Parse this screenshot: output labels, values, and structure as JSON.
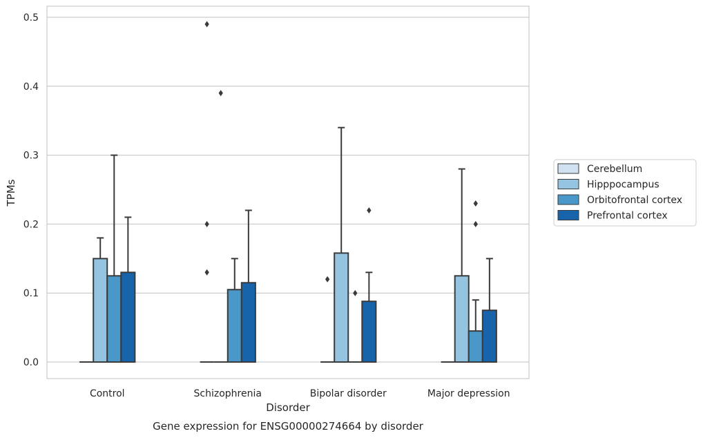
{
  "chart_data": {
    "type": "box",
    "title": "Gene expression for ENSG00000274664 by disorder",
    "xlabel": "Disorder",
    "ylabel": "TPMs",
    "ylim": [
      -0.024,
      0.516
    ],
    "yticks": [
      "0.0",
      "0.1",
      "0.2",
      "0.3",
      "0.4",
      "0.5"
    ],
    "ytick_values": [
      0.0,
      0.1,
      0.2,
      0.3,
      0.4,
      0.5
    ],
    "grid": true,
    "legend_position": "right",
    "categories": [
      "Control",
      "Schizophrenia",
      "Bipolar disorder",
      "Major depression"
    ],
    "series": [
      {
        "name": "Cerebellum",
        "color": "#d0e1f2",
        "boxes": [
          {
            "q1": 0.0,
            "q3": 0.0,
            "whisker_low": 0.0,
            "whisker_high": 0.0,
            "outliers": []
          },
          {
            "q1": 0.0,
            "q3": 0.0,
            "whisker_low": 0.0,
            "whisker_high": 0.0,
            "outliers": [
              0.49,
              0.2,
              0.13
            ]
          },
          {
            "q1": 0.0,
            "q3": 0.0,
            "whisker_low": 0.0,
            "whisker_high": 0.0,
            "outliers": [
              0.12
            ]
          },
          {
            "q1": 0.0,
            "q3": 0.0,
            "whisker_low": 0.0,
            "whisker_high": 0.0,
            "outliers": []
          }
        ]
      },
      {
        "name": "Hipppocampus",
        "color": "#94c4df",
        "boxes": [
          {
            "q1": 0.0,
            "q3": 0.15,
            "whisker_low": 0.0,
            "whisker_high": 0.18,
            "outliers": []
          },
          {
            "q1": 0.0,
            "q3": 0.0,
            "whisker_low": 0.0,
            "whisker_high": 0.0,
            "outliers": [
              0.39
            ]
          },
          {
            "q1": 0.0,
            "q3": 0.158,
            "whisker_low": 0.0,
            "whisker_high": 0.34,
            "outliers": []
          },
          {
            "q1": 0.0,
            "q3": 0.125,
            "whisker_low": 0.0,
            "whisker_high": 0.28,
            "outliers": []
          }
        ]
      },
      {
        "name": "Orbitofrontal cortex",
        "color": "#4a98c9",
        "boxes": [
          {
            "q1": 0.0,
            "q3": 0.125,
            "whisker_low": 0.0,
            "whisker_high": 0.3,
            "outliers": []
          },
          {
            "q1": 0.0,
            "q3": 0.105,
            "whisker_low": 0.0,
            "whisker_high": 0.15,
            "outliers": []
          },
          {
            "q1": 0.0,
            "q3": 0.0,
            "whisker_low": 0.0,
            "whisker_high": 0.0,
            "outliers": [
              0.1
            ]
          },
          {
            "q1": 0.0,
            "q3": 0.045,
            "whisker_low": 0.0,
            "whisker_high": 0.09,
            "outliers": [
              0.23,
              0.2
            ]
          }
        ]
      },
      {
        "name": "Prefrontal cortex",
        "color": "#1764ab",
        "boxes": [
          {
            "q1": 0.0,
            "q3": 0.13,
            "whisker_low": 0.0,
            "whisker_high": 0.21,
            "outliers": []
          },
          {
            "q1": 0.0,
            "q3": 0.115,
            "whisker_low": 0.0,
            "whisker_high": 0.22,
            "outliers": []
          },
          {
            "q1": 0.0,
            "q3": 0.088,
            "whisker_low": 0.0,
            "whisker_high": 0.13,
            "outliers": [
              0.22
            ]
          },
          {
            "q1": 0.0,
            "q3": 0.075,
            "whisker_low": 0.0,
            "whisker_high": 0.15,
            "outliers": []
          }
        ]
      }
    ]
  }
}
